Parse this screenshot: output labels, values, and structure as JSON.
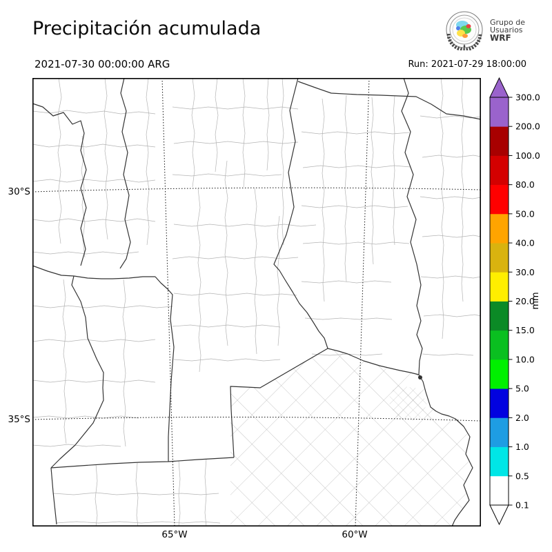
{
  "title": "Precipitación acumulada",
  "valid_time": "2021-07-30 00:00:00 ARG",
  "run_time": "Run: 2021-07-29 18:00:00",
  "logo": {
    "line1": "Grupo de",
    "line2": "Usuarios",
    "line3": "WRF"
  },
  "axes": {
    "lat": [
      "30°S",
      "35°S"
    ],
    "lon": [
      "65°W",
      "60°W"
    ]
  },
  "chart_data": {
    "type": "heatmap",
    "title": "Precipitación acumulada",
    "valid_time": "2021-07-30 00:00:00 ARG",
    "run": "2021-07-29 18:00:00",
    "field": "accumulated precipitation (WRF model output map of central Argentina)",
    "field_summary": "No shaded precipitation anywhere in the domain: every grid value is below the lowest contour (0.1 mm), so the whole map is white showing only province and department boundaries plus dotted graticule lines.",
    "lat_ticks": [
      "30°S",
      "35°S"
    ],
    "lon_ticks": [
      "65°W",
      "60°W"
    ],
    "grid": "dotted graticule at 30°S, 35°S, 65°W, 60°W",
    "legend_position": "right vertical colorbar with triangular over/under arrows",
    "colorbar": {
      "unit": "mm",
      "boundaries": [
        0.1,
        0.5,
        1.0,
        2.0,
        5.0,
        10.0,
        15.0,
        20.0,
        30.0,
        40.0,
        50.0,
        80.0,
        100.0,
        200.0,
        300.0
      ],
      "tick_labels": [
        "0.1",
        "0.5",
        "1.0",
        "2.0",
        "5.0",
        "10.0",
        "15.0",
        "20.0",
        "30.0",
        "40.0",
        "50.0",
        "80.0",
        "100.0",
        "200.0",
        "300.0"
      ],
      "colors": [
        "#ffffff",
        "#00e6e6",
        "#1e9de3",
        "#0202df",
        "#00f000",
        "#0abf20",
        "#0b8a26",
        "#ffee00",
        "#d9b30f",
        "#ffa400",
        "#ff0000",
        "#d40000",
        "#a80000",
        "#9a63cc"
      ],
      "under_color": "#ffffff",
      "over_color": "#9a63cc"
    }
  }
}
